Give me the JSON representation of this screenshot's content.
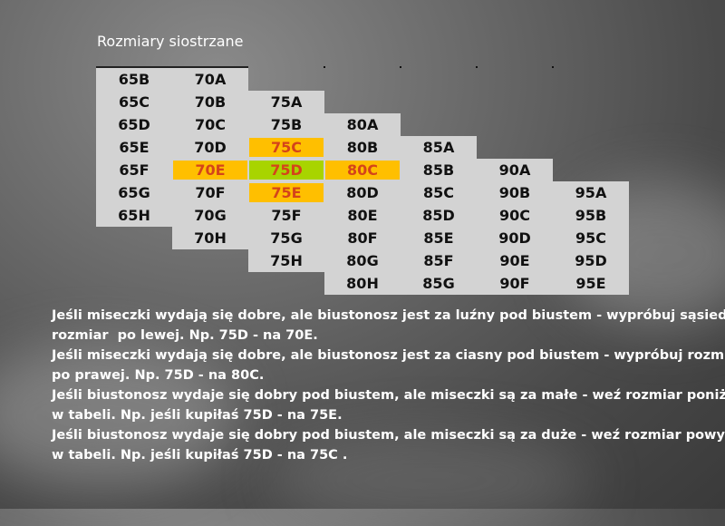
{
  "title": "Rozmiary siostrzane",
  "colors": {
    "cell": "#d3d3d3",
    "highlight_orange": "#ffbf00",
    "highlight_green": "#a8d400",
    "highlight_text": "#d4441a"
  },
  "columns": [
    {
      "start_row": 0,
      "sizes": [
        "65B",
        "65C",
        "65D",
        "65E",
        "65F",
        "65G",
        "65H"
      ]
    },
    {
      "start_row": 0,
      "sizes": [
        "70A",
        "70B",
        "70C",
        "70D",
        "70E",
        "70F",
        "70G",
        "70H"
      ]
    },
    {
      "start_row": 1,
      "sizes": [
        "75A",
        "75B",
        "75C",
        "75D",
        "75E",
        "75F",
        "75G",
        "75H"
      ]
    },
    {
      "start_row": 2,
      "sizes": [
        "80A",
        "80B",
        "80C",
        "80D",
        "80E",
        "80F",
        "80G",
        "80H"
      ]
    },
    {
      "start_row": 3,
      "sizes": [
        "85A",
        "85B",
        "85C",
        "85D",
        "85E",
        "85F",
        "85G"
      ]
    },
    {
      "start_row": 4,
      "sizes": [
        "90A",
        "90B",
        "90C",
        "90D",
        "90E",
        "90F"
      ]
    },
    {
      "start_row": 5,
      "sizes": [
        "95A",
        "95B",
        "95C",
        "95D",
        "95E"
      ]
    }
  ],
  "highlights": {
    "75C": "orange",
    "70E": "orange",
    "75D": "green",
    "80C": "orange",
    "75E": "orange"
  },
  "notes": [
    "Jeśli miseczki wydają się dobre, ale biustonosz jest za luźny pod biustem - wypróbuj sąsiedni",
    "rozmiar  po lewej. Np. 75D - na 70E.",
    "Jeśli miseczki wydają się dobre, ale biustonosz jest za ciasny pod biustem - wypróbuj rozmiar",
    "po prawej. Np. 75D - na 80C.",
    "Jeśli biustonosz wydaje się dobry pod biustem, ale miseczki są za małe - weź rozmiar poniżej",
    "w tabeli. Np. jeśli kupiłaś 75D - na 75E.",
    "Jeśli biustonosz wydaje się dobry pod biustem, ale miseczki są za duże - weź rozmiar powyżej",
    "w tabeli. Np. jeśli kupiłaś 75D - na 75C ."
  ]
}
